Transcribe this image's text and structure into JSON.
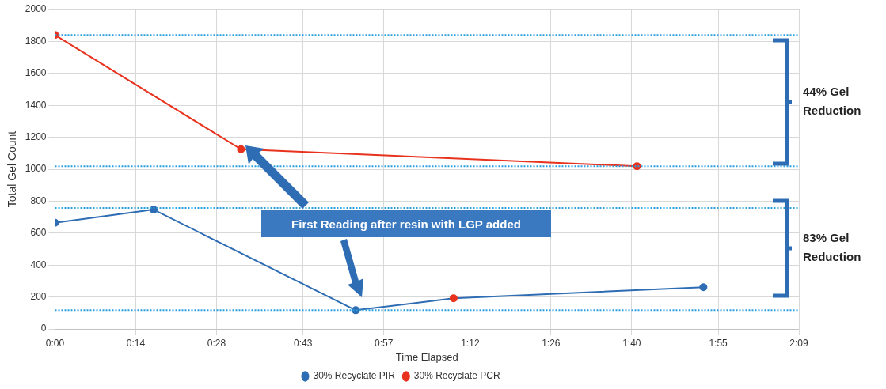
{
  "chart_data": {
    "type": "line",
    "xlabel": "Time Elapsed",
    "ylabel": "Total Gel Count",
    "xlim": [
      0,
      2.15
    ],
    "xticks": [
      {
        "value": 0,
        "label": "0:00"
      },
      {
        "value": 0.2333,
        "label": "0:14"
      },
      {
        "value": 0.4667,
        "label": "0:28"
      },
      {
        "value": 0.7167,
        "label": "0:43"
      },
      {
        "value": 0.95,
        "label": "0:57"
      },
      {
        "value": 1.2,
        "label": "1:12"
      },
      {
        "value": 1.4333,
        "label": "1:26"
      },
      {
        "value": 1.6667,
        "label": "1:40"
      },
      {
        "value": 1.9167,
        "label": "1:55"
      },
      {
        "value": 2.15,
        "label": "2:09"
      }
    ],
    "ylim": [
      0,
      2000
    ],
    "yticks": [
      0,
      200,
      400,
      600,
      800,
      1000,
      1200,
      1400,
      1600,
      1800,
      2000
    ],
    "series": [
      {
        "name": "30% Recyclate PIR",
        "color": "#2e6db4",
        "x": [
          0,
          0.285,
          0.869,
          1.152,
          1.874
        ],
        "values": [
          665,
          747,
          117,
          192,
          261
        ],
        "colors": [
          "#2e6db4",
          "#2e6db4",
          "#2e6db4",
          "#e8321e",
          "#2e6db4"
        ]
      },
      {
        "name": "30% Recyclate PCR",
        "color": "#e8321e",
        "x": [
          0,
          0.5375,
          1.682
        ],
        "values": [
          1840,
          1125,
          1019
        ]
      }
    ],
    "ref_lines": [
      {
        "axis": "y",
        "value": 1840,
        "color": "#2a9fe0",
        "line_style": "dotted"
      },
      {
        "axis": "y",
        "value": 1019,
        "color": "#2a9fe0",
        "line_style": "dotted"
      },
      {
        "axis": "y",
        "value": 757,
        "color": "#2a9fe0",
        "line_style": "dotted"
      },
      {
        "axis": "y",
        "value": 117,
        "color": "#2a9fe0",
        "line_style": "dotted"
      }
    ],
    "annotations": [
      "First Reading after resin with LGP added",
      "44% Gel Reduction",
      "83% Gel Reduction"
    ],
    "grid": true,
    "legend": "bottom",
    "marker": "circle",
    "line_style": "solid"
  }
}
